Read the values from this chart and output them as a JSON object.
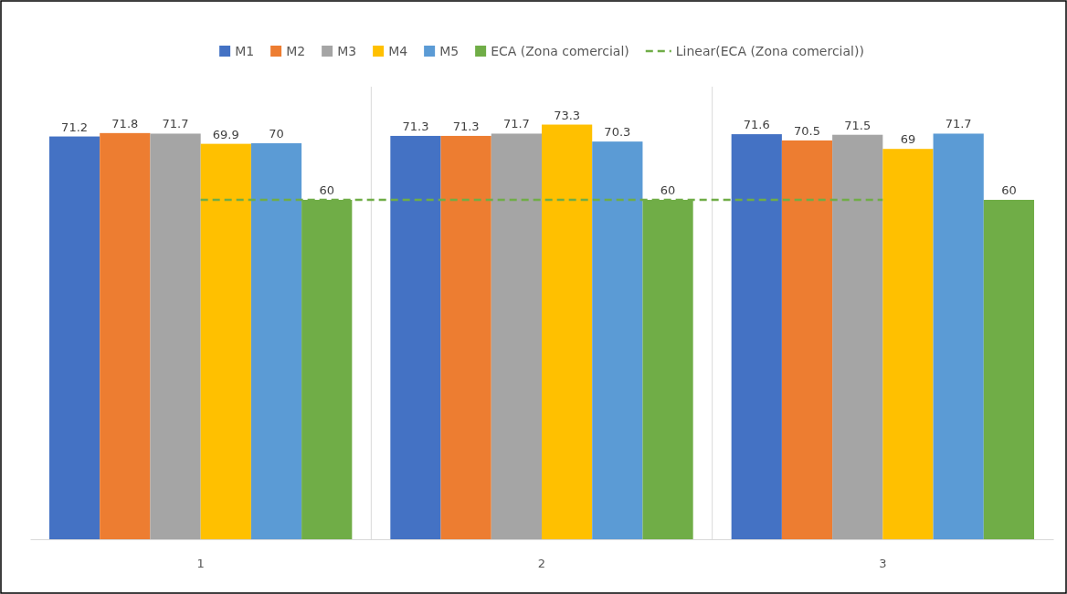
{
  "chart_data": {
    "type": "bar",
    "categories": [
      "1",
      "2",
      "3"
    ],
    "ylim": [
      0,
      80
    ],
    "grid": "x",
    "legend": "top",
    "series": [
      {
        "name": "M1",
        "color": "#4472c4",
        "values": [
          71.2,
          71.3,
          71.6
        ],
        "value_labels": [
          "71.2",
          "71.3",
          "71.6"
        ]
      },
      {
        "name": "M2",
        "color": "#ed7d31",
        "values": [
          71.8,
          71.3,
          70.5
        ],
        "value_labels": [
          "71.8",
          "71.3",
          "70.5"
        ]
      },
      {
        "name": "M3",
        "color": "#a5a5a5",
        "values": [
          71.7,
          71.7,
          71.5
        ],
        "value_labels": [
          "71.7",
          "71.7",
          "71.5"
        ]
      },
      {
        "name": "M4",
        "color": "#ffc000",
        "values": [
          69.9,
          73.3,
          69
        ],
        "value_labels": [
          "69.9",
          "73.3",
          "69"
        ]
      },
      {
        "name": "M5",
        "color": "#5b9bd5",
        "values": [
          70,
          70.3,
          71.7
        ],
        "value_labels": [
          "70",
          "70.3",
          "71.7"
        ]
      },
      {
        "name": "ECA (Zona comercial)",
        "color": "#70ad47",
        "values": [
          60,
          60,
          60
        ],
        "value_labels": [
          "60",
          "60",
          "60"
        ]
      },
      {
        "name": "Linear(ECA (Zona comercial))",
        "type": "line",
        "line_style": "dashed",
        "color": "#70ad47",
        "values": [
          60,
          60,
          60
        ]
      }
    ]
  }
}
